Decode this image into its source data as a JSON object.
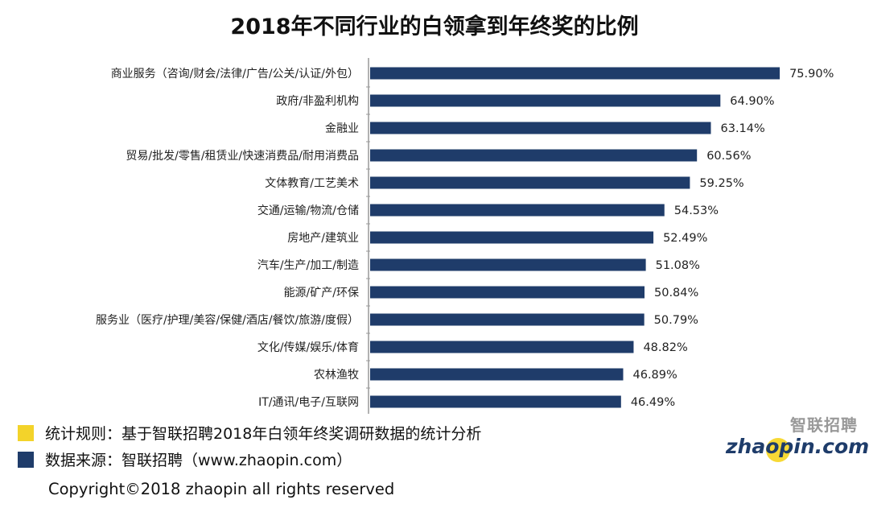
{
  "chart_data": {
    "type": "bar",
    "orientation": "horizontal",
    "title": "2018年不同行业的白领拿到年终奖的比例",
    "categories": [
      "商业服务（咨询/财会/法律/广告/公关/认证/外包）",
      "政府/非盈利机构",
      "金融业",
      "贸易/批发/零售/租赁业/快速消费品/耐用消费品",
      "文体教育/工艺美术",
      "交通/运输/物流/仓储",
      "房地产/建筑业",
      "汽车/生产/加工/制造",
      "能源/矿产/环保",
      "服务业（医疗/护理/美容/保健/酒店/餐饮/旅游/度假）",
      "文化/传媒/娱乐/体育",
      "农林渔牧",
      "IT/通讯/电子/互联网"
    ],
    "values": [
      75.9,
      64.9,
      63.14,
      60.56,
      59.25,
      54.53,
      52.49,
      51.08,
      50.84,
      50.79,
      48.82,
      46.89,
      46.49
    ],
    "labels": [
      "75.90%",
      "64.90%",
      "63.14%",
      "60.56%",
      "59.25%",
      "54.53%",
      "52.49%",
      "51.08%",
      "50.84%",
      "50.79%",
      "48.82%",
      "46.89%",
      "46.49%"
    ],
    "xlim": [
      0,
      82
    ],
    "xlabel": "",
    "ylabel": "",
    "grid": false,
    "legend": "none"
  },
  "footer": {
    "rule_text": "统计规则：基于智联招聘2018年白领年终奖调研数据的统计分析",
    "source_text": "数据来源：智联招聘（www.zhaopin.com）",
    "copyright": "Copyright©2018 zhaopin all rights reserved"
  },
  "logo": {
    "cn": "智联招聘",
    "en": "zhaopin.com"
  },
  "colors": {
    "bar": "#1f3c6a",
    "rule_swatch": "#f3d32a",
    "source_swatch": "#1f3c6a",
    "axis": "#999999"
  }
}
